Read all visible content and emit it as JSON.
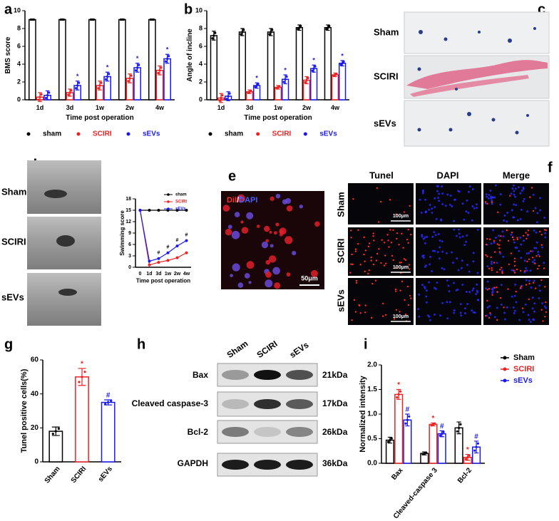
{
  "panel_labels": [
    "a",
    "b",
    "c",
    "d",
    "e",
    "f",
    "g",
    "h",
    "i"
  ],
  "chart_data": [
    {
      "type": "bar",
      "ylabel": "BMS score",
      "xlabel": "Time post operation",
      "categories": [
        "1d",
        "3d",
        "1w",
        "2w",
        "4w"
      ],
      "ylim": [
        0,
        10
      ],
      "yticks": [
        0,
        2,
        4,
        6,
        8,
        10
      ],
      "legend": "below",
      "series": [
        {
          "name": "sham",
          "color": "#000000",
          "values": [
            9,
            9,
            9,
            9,
            9
          ],
          "errors": [
            0,
            0,
            0,
            0,
            0
          ]
        },
        {
          "name": "SCIRI",
          "color": "#ee2222",
          "values": [
            0.3,
            0.8,
            1.6,
            2.4,
            3.3
          ],
          "errors": [
            0.5,
            0.4,
            0.5,
            0.5,
            0.5
          ]
        },
        {
          "name": "sEVs",
          "color": "#1a1aee",
          "values": [
            0.5,
            1.6,
            2.6,
            3.6,
            4.6
          ],
          "errors": [
            0.5,
            0.5,
            0.5,
            0.5,
            0.5
          ],
          "annotations": [
            null,
            "*",
            "*",
            "*",
            "*"
          ]
        }
      ]
    },
    {
      "type": "bar",
      "ylabel": "Angle of incline",
      "xlabel": "Time post operation",
      "categories": [
        "1d",
        "3d",
        "1w",
        "2w",
        "4w"
      ],
      "ylim": [
        0,
        10
      ],
      "yticks": [
        0,
        2,
        4,
        6,
        8,
        10
      ],
      "legend": "below",
      "series": [
        {
          "name": "sham",
          "color": "#000000",
          "values": [
            7.2,
            7.6,
            7.6,
            8.1,
            8.1
          ],
          "errors": [
            0.5,
            0.4,
            0.4,
            0.3,
            0.3
          ]
        },
        {
          "name": "SCIRI",
          "color": "#ee2222",
          "values": [
            0.2,
            0.9,
            1.4,
            2.2,
            2.8
          ],
          "errors": [
            0.5,
            0.2,
            0.2,
            0.4,
            0.2
          ]
        },
        {
          "name": "sEVs",
          "color": "#1a1aee",
          "values": [
            0.4,
            1.6,
            2.3,
            3.5,
            4.1
          ],
          "errors": [
            0.5,
            0.3,
            0.5,
            0.4,
            0.3
          ],
          "annotations": [
            null,
            "*",
            "*",
            "*",
            "*"
          ]
        }
      ]
    },
    {
      "type": "line",
      "ylabel": "Swimming score",
      "xlabel": "Time post operation",
      "categories": [
        "0",
        "1d",
        "3d",
        "1w",
        "2w",
        "4w"
      ],
      "ylim": [
        0,
        18
      ],
      "yticks": [
        0,
        3,
        6,
        9,
        12,
        15,
        18
      ],
      "legend": "inside",
      "series": [
        {
          "name": "sham",
          "color": "#000000",
          "values": [
            15,
            15,
            15,
            15,
            15,
            15
          ]
        },
        {
          "name": "SCIRI",
          "color": "#ee2222",
          "values": [
            15,
            0.6,
            1.3,
            1.8,
            2.5,
            3.8
          ]
        },
        {
          "name": "sEVs",
          "color": "#1a1aee",
          "values": [
            15,
            1.6,
            2.3,
            3.8,
            5.6,
            7.0
          ],
          "annotations": [
            null,
            null,
            "#",
            "#",
            "#",
            "#"
          ]
        }
      ]
    },
    {
      "type": "bar",
      "ylabel": "Tunel positive  cells(%)",
      "categories": [
        "Sham",
        "SCIRI",
        "sEVs"
      ],
      "ylim": [
        0,
        60
      ],
      "yticks": [
        0,
        20,
        40,
        60
      ],
      "series": [
        {
          "colors": [
            "#000000",
            "#ee2222",
            "#1a1aee"
          ],
          "values": [
            18,
            50,
            35
          ],
          "errors": [
            2.5,
            5,
            1.5
          ],
          "annotations": [
            null,
            "*",
            "#"
          ]
        }
      ]
    },
    {
      "type": "bar",
      "ylabel": "Normalized intensity",
      "categories": [
        "Bax",
        "Cleaved-caspase 3",
        "Bcl-2"
      ],
      "ylim": [
        0,
        2
      ],
      "yticks": [
        {
          "value": 0,
          "label": "0.0"
        },
        {
          "value": 0.5,
          "label": "0.5"
        },
        {
          "value": 1,
          "label": "1.0"
        },
        {
          "value": 1.5,
          "label": "1.5"
        },
        {
          "value": 2,
          "label": "2.0"
        }
      ],
      "legend": "upper right",
      "series": [
        {
          "name": "Sham",
          "color": "#000000",
          "values": [
            0.47,
            0.2,
            0.72
          ],
          "errors": [
            0.06,
            0.03,
            0.12
          ]
        },
        {
          "name": "SCIRI",
          "color": "#ee2222",
          "values": [
            1.4,
            0.79,
            0.12
          ],
          "errors": [
            0.1,
            0.03,
            0.06
          ],
          "annotations": [
            "*",
            "*",
            "*"
          ]
        },
        {
          "name": "sEVs",
          "color": "#1a1aee",
          "values": [
            0.88,
            0.6,
            0.33
          ],
          "errors": [
            0.12,
            0.06,
            0.12
          ],
          "annotations": [
            "#",
            "#",
            "#"
          ]
        }
      ]
    }
  ],
  "images": {
    "c": {
      "rows": [
        "Sham",
        "SCIRI",
        "sEVs"
      ]
    },
    "d": {
      "rows": [
        "Sham",
        "SCIRI",
        "sEVs"
      ]
    },
    "e": {
      "stain_1": "DiI",
      "separator": "/",
      "stain_2": "DAPI",
      "scale": "50μm"
    },
    "f": {
      "columns": [
        "Tunel",
        "DAPI",
        "Merge"
      ],
      "rows": [
        "Sham",
        "SCIRI",
        "sEVs"
      ],
      "scale": "100μm"
    },
    "h": {
      "lanes": [
        "Sham",
        "SCIRI",
        "sEVs"
      ],
      "proteins": [
        "Bax",
        "Cleaved caspase-3",
        "Bcl-2",
        "GAPDH"
      ],
      "sizes": [
        "21kDa",
        "17kDa",
        "26kDa",
        "36kDa"
      ]
    }
  }
}
